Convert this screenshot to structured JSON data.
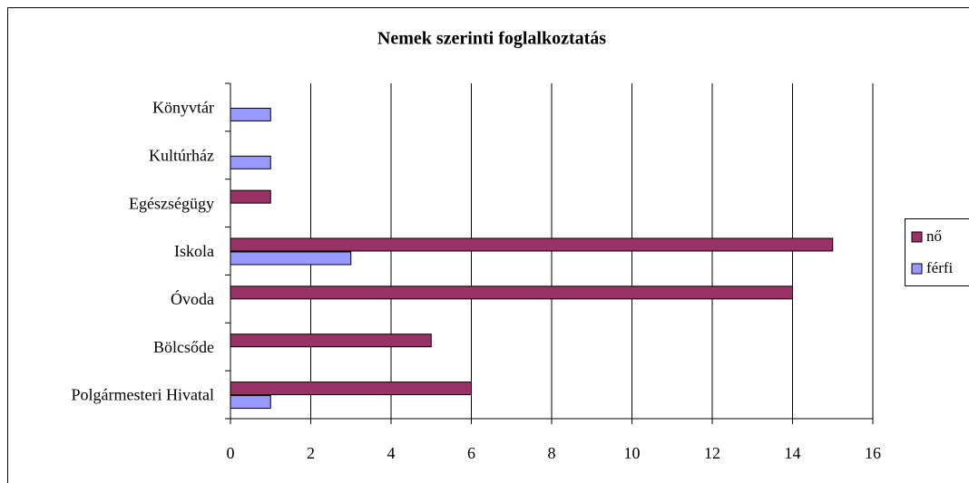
{
  "chart_data": {
    "type": "barh",
    "title": "Nemek szerinti foglalkoztatás",
    "categories": [
      "Könyvtár",
      "Kultúrház",
      "Egészségügy",
      "Iskola",
      "Óvoda",
      "Bölcsőde",
      "Polgármesteri Hivatal"
    ],
    "series": [
      {
        "name": "nő",
        "color": "#993366",
        "values": [
          null,
          null,
          1,
          15,
          14,
          5,
          6
        ]
      },
      {
        "name": "férfi",
        "color": "#9999ff",
        "values": [
          1,
          1,
          null,
          3,
          null,
          null,
          1
        ]
      }
    ],
    "xlim": [
      0,
      16
    ],
    "xticks": [
      0,
      2,
      4,
      6,
      8,
      10,
      12,
      14,
      16
    ],
    "grid": true,
    "legend": "right"
  }
}
